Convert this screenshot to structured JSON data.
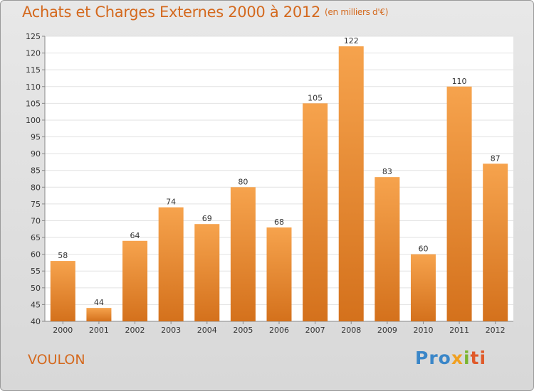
{
  "title": "Achats et Charges Externes 2000 à 2012",
  "subtitle": "(en milliers d'€)",
  "commune": "VOULON",
  "logo": {
    "p1": "Pro",
    "p2": "x",
    "p3": "i",
    "p4": "ti"
  },
  "colors": {
    "bar_top": "#f6a34d",
    "bar_bottom": "#d4711c",
    "accent": "#d4691e"
  },
  "chart_data": {
    "type": "bar",
    "categories": [
      "2000",
      "2001",
      "2002",
      "2003",
      "2004",
      "2005",
      "2006",
      "2007",
      "2008",
      "2009",
      "2010",
      "2011",
      "2012"
    ],
    "values": [
      58,
      44,
      64,
      74,
      69,
      80,
      68,
      105,
      122,
      83,
      60,
      110,
      87
    ],
    "ylim": [
      40,
      125
    ],
    "yticks": [
      40,
      45,
      50,
      55,
      60,
      65,
      70,
      75,
      80,
      85,
      90,
      95,
      100,
      105,
      110,
      115,
      120,
      125
    ],
    "grid": true
  }
}
